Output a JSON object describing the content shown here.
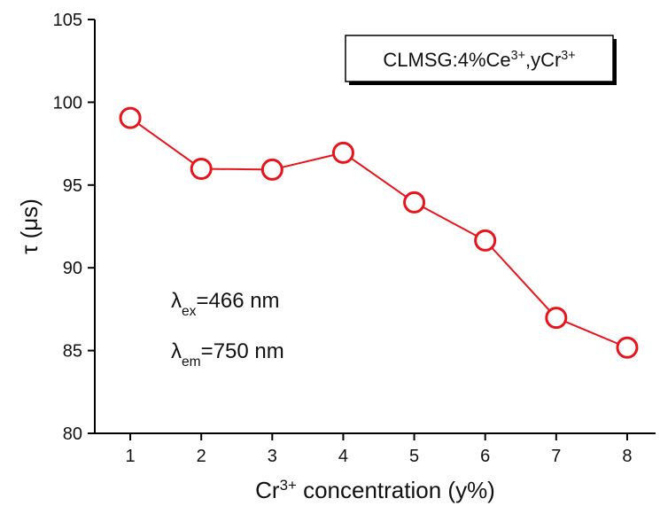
{
  "chart_data": {
    "type": "line",
    "x": [
      1,
      2,
      3,
      4,
      5,
      6,
      7,
      8
    ],
    "series": [
      {
        "color": "#e8141b",
        "values": [
          99.05,
          95.98,
          95.93,
          96.95,
          93.95,
          91.65,
          86.98,
          85.18
        ]
      }
    ],
    "xlim": [
      0.5,
      8.4
    ],
    "xticks": [
      1,
      2,
      3,
      4,
      5,
      6,
      7,
      8
    ],
    "ylim": [
      80,
      105
    ],
    "yticks": [
      80,
      85,
      90,
      95,
      100,
      105
    ],
    "xlabel": [
      {
        "text": "Cr"
      },
      {
        "text": "3+",
        "sup": true
      },
      {
        "text": " concentration (y%)"
      }
    ],
    "ylabel": [
      {
        "text": "τ (μs)"
      }
    ],
    "legend_box": [
      {
        "text": "CLMSG:4%Ce"
      },
      {
        "text": "3+",
        "sup": true
      },
      {
        "text": ",yCr"
      },
      {
        "text": "3+",
        "sup": true
      }
    ],
    "annotations": [
      [
        {
          "text": "λ"
        },
        {
          "text": "ex",
          "sub": true
        },
        {
          "text": "=466 nm"
        }
      ],
      [
        {
          "text": "λ"
        },
        {
          "text": "em",
          "sub": true
        },
        {
          "text": "=750 nm"
        }
      ]
    ]
  }
}
